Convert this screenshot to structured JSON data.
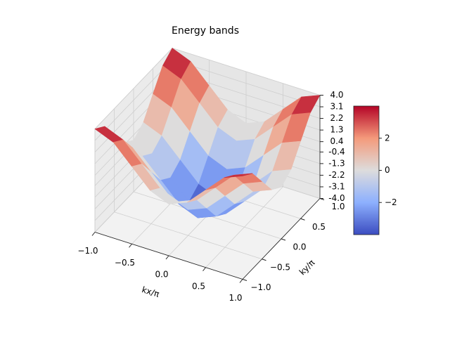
{
  "chart_data": {
    "type": "surface",
    "title": "Energy bands",
    "xlabel": "kx/π",
    "ylabel": "ky/π",
    "x": [
      -1,
      -0.75,
      -0.5,
      -0.25,
      0,
      0.25,
      0.5,
      0.75,
      1
    ],
    "y": [
      -1,
      -0.75,
      -0.5,
      -0.25,
      0,
      0.25,
      0.5,
      0.75,
      1
    ],
    "z": [
      [
        4,
        3.414,
        2,
        0.586,
        0,
        0.586,
        2,
        3.414,
        4
      ],
      [
        3.414,
        2.828,
        1.414,
        0,
        -0.586,
        0,
        1.414,
        2.828,
        3.414
      ],
      [
        2,
        1.414,
        0,
        -1.414,
        -2,
        -1.414,
        0,
        1.414,
        2
      ],
      [
        0.586,
        0,
        -1.414,
        -2.828,
        -3.414,
        -2.828,
        -1.414,
        0,
        0.586
      ],
      [
        0,
        -0.586,
        -2,
        -3.414,
        -4,
        -3.414,
        -2,
        -0.586,
        0
      ],
      [
        0.586,
        0,
        -1.414,
        -2.828,
        -3.414,
        -2.828,
        -1.414,
        0,
        0.586
      ],
      [
        2,
        1.414,
        0,
        -1.414,
        -2,
        -1.414,
        0,
        1.414,
        2
      ],
      [
        3.414,
        2.828,
        1.414,
        0,
        -0.586,
        0,
        1.414,
        2.828,
        3.414
      ],
      [
        4,
        3.414,
        2,
        0.586,
        0,
        0.586,
        2,
        3.414,
        4
      ]
    ],
    "xlim": [
      -1,
      1
    ],
    "ylim": [
      -1,
      1
    ],
    "zlim": [
      -4,
      4
    ],
    "xticks": [
      {
        "value": -1,
        "label": "−1.0"
      },
      {
        "value": -0.5,
        "label": "−0.5"
      },
      {
        "value": 0,
        "label": "0.0"
      },
      {
        "value": 0.5,
        "label": "0.5"
      },
      {
        "value": 1,
        "label": "1.0"
      }
    ],
    "yticks": [
      {
        "value": -1,
        "label": "−1.0"
      },
      {
        "value": -0.5,
        "label": "−0.5"
      },
      {
        "value": 0,
        "label": "0.0"
      },
      {
        "value": 0.5,
        "label": "0.5"
      },
      {
        "value": 1,
        "label": "1.0"
      }
    ],
    "zticks": [
      {
        "value": -4,
        "label": "-4.0"
      },
      -3.1,
      -2.2,
      -1.3,
      -0.4,
      0.4,
      1.3,
      2.2,
      3.1,
      {
        "value": 4,
        "label": "4.0"
      }
    ],
    "colormap": [
      "#3b4cc0",
      "#8db0fe",
      "#dddcdc",
      "#f49a7b",
      "#b40426"
    ],
    "clim": [
      -4,
      4
    ],
    "cbar_ticks": [
      {
        "value": -2,
        "label": "−2"
      },
      0,
      2
    ],
    "grid": true
  }
}
